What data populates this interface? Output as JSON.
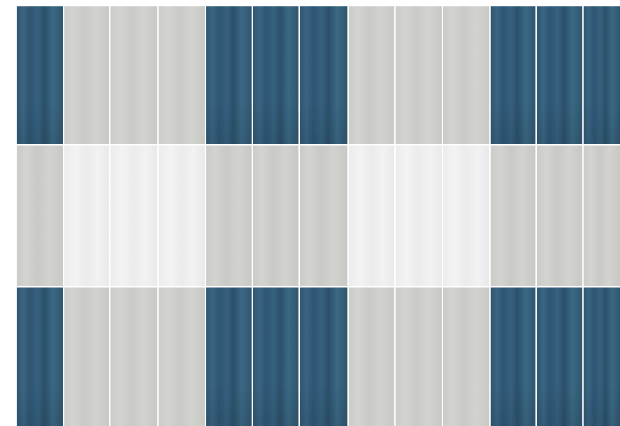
{
  "colors": {
    "blue": "#325b77",
    "gray": "#cdcdc9",
    "light": "#efefef",
    "grout": "#ffffff"
  },
  "tile_pattern": [
    [
      "blue",
      "gray",
      "gray",
      "gray",
      "blue",
      "blue",
      "blue",
      "gray",
      "gray",
      "gray",
      "blue",
      "blue",
      "blue"
    ],
    [
      "gray",
      "light",
      "light",
      "light",
      "gray",
      "gray",
      "gray",
      "light",
      "light",
      "light",
      "gray",
      "gray",
      "gray"
    ],
    [
      "blue",
      "gray",
      "gray",
      "gray",
      "blue",
      "blue",
      "blue",
      "gray",
      "gray",
      "gray",
      "blue",
      "blue",
      "blue"
    ]
  ]
}
